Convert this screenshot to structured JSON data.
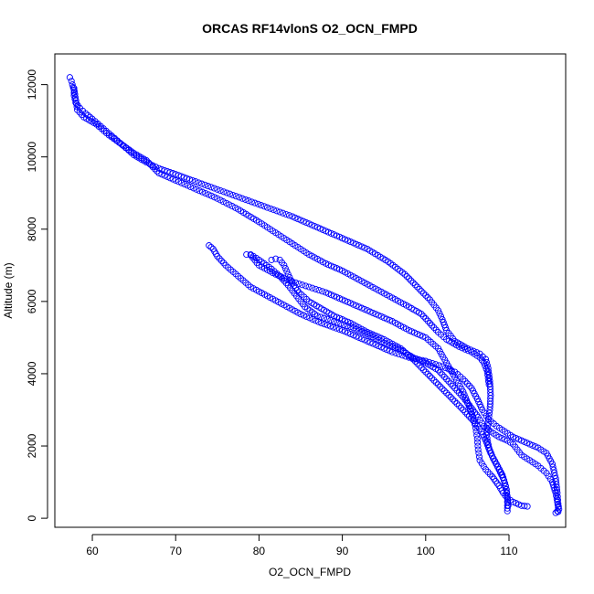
{
  "chart_data": {
    "type": "scatter",
    "title": "ORCAS RF14vlonS O2_OCN_FMPD",
    "xlabel": "O2_OCN_FMPD",
    "ylabel": "Altitude (m)",
    "xlim": [
      55.5,
      116.8
    ],
    "ylim": [
      -250,
      12850
    ],
    "xticks": [
      60,
      70,
      80,
      90,
      100,
      110
    ],
    "yticks": [
      0,
      2000,
      4000,
      6000,
      8000,
      10000,
      12000
    ],
    "marker": "open-circle",
    "color": "#0000ff",
    "grid": false,
    "series": [
      {
        "name": "",
        "segments": [
          {
            "id": "main-descent",
            "points": [
              [
                57.3,
                12200
              ],
              [
                57.5,
                12100
              ],
              [
                57.6,
                12000
              ],
              [
                57.8,
                11850
              ],
              [
                57.8,
                11700
              ],
              [
                58.0,
                11500
              ],
              [
                58.5,
                11350
              ],
              [
                59.2,
                11200
              ],
              [
                60.0,
                11050
              ],
              [
                61.0,
                10850
              ],
              [
                62.0,
                10650
              ],
              [
                63.0,
                10450
              ],
              [
                64.0,
                10250
              ],
              [
                65.0,
                10050
              ],
              [
                66.5,
                9850
              ],
              [
                68.0,
                9680
              ],
              [
                70.0,
                9520
              ],
              [
                72.0,
                9350
              ],
              [
                75.0,
                9100
              ],
              [
                78.0,
                8850
              ],
              [
                81.0,
                8600
              ],
              [
                84.0,
                8350
              ],
              [
                87.0,
                8050
              ],
              [
                90.0,
                7750
              ],
              [
                93.0,
                7450
              ],
              [
                95.5,
                7100
              ],
              [
                97.5,
                6750
              ],
              [
                99.0,
                6400
              ],
              [
                100.5,
                6050
              ],
              [
                101.5,
                5750
              ],
              [
                102.0,
                5500
              ],
              [
                102.5,
                5200
              ],
              [
                103.5,
                4900
              ],
              [
                105.0,
                4700
              ],
              [
                106.5,
                4550
              ],
              [
                107.2,
                4400
              ],
              [
                107.5,
                4150
              ],
              [
                107.7,
                3800
              ],
              [
                107.8,
                3400
              ],
              [
                107.7,
                3000
              ],
              [
                107.5,
                2650
              ],
              [
                107.3,
                2300
              ],
              [
                107.6,
                1950
              ],
              [
                108.1,
                1650
              ],
              [
                108.8,
                1350
              ],
              [
                109.4,
                1050
              ],
              [
                109.7,
                800
              ],
              [
                109.8,
                550
              ],
              [
                109.8,
                350
              ],
              [
                109.8,
                200
              ]
            ]
          },
          {
            "id": "lower-limb-a",
            "points": [
              [
                74.0,
                7550
              ],
              [
                74.5,
                7450
              ],
              [
                75.0,
                7250
              ],
              [
                76.0,
                7000
              ],
              [
                77.5,
                6700
              ],
              [
                79.0,
                6400
              ],
              [
                81.0,
                6150
              ],
              [
                83.0,
                5900
              ],
              [
                85.0,
                5650
              ],
              [
                87.5,
                5400
              ],
              [
                90.0,
                5200
              ],
              [
                92.0,
                5000
              ],
              [
                94.0,
                4800
              ],
              [
                96.0,
                4600
              ],
              [
                98.0,
                4450
              ],
              [
                100.0,
                4350
              ],
              [
                102.0,
                4200
              ],
              [
                103.5,
                4050
              ],
              [
                104.5,
                3850
              ],
              [
                105.5,
                3600
              ],
              [
                106.2,
                3300
              ],
              [
                106.8,
                3000
              ],
              [
                107.5,
                2750
              ],
              [
                108.5,
                2550
              ],
              [
                109.5,
                2400
              ],
              [
                110.5,
                2250
              ],
              [
                111.5,
                2150
              ],
              [
                112.5,
                2050
              ],
              [
                113.5,
                1950
              ],
              [
                114.5,
                1800
              ],
              [
                115.2,
                1500
              ],
              [
                115.6,
                1100
              ],
              [
                115.8,
                700
              ],
              [
                115.9,
                400
              ],
              [
                116.0,
                250
              ],
              [
                115.9,
                180
              ],
              [
                115.6,
                150
              ]
            ]
          },
          {
            "id": "lower-limb-b",
            "points": [
              [
                78.5,
                7300
              ],
              [
                79.0,
                7280
              ],
              [
                80.0,
                7000
              ],
              [
                82.0,
                6750
              ],
              [
                84.0,
                6550
              ],
              [
                86.0,
                6400
              ],
              [
                88.0,
                6250
              ],
              [
                90.0,
                6050
              ],
              [
                92.0,
                5850
              ],
              [
                94.0,
                5650
              ],
              [
                96.0,
                5450
              ],
              [
                98.0,
                5200
              ],
              [
                100.0,
                5000
              ],
              [
                101.5,
                4700
              ],
              [
                102.5,
                4300
              ],
              [
                103.5,
                3900
              ],
              [
                104.5,
                3500
              ],
              [
                105.2,
                3100
              ],
              [
                105.7,
                2800
              ],
              [
                106.0,
                2500
              ],
              [
                106.2,
                2200
              ],
              [
                106.3,
                1900
              ],
              [
                106.5,
                1600
              ],
              [
                107.2,
                1350
              ],
              [
                108.0,
                1150
              ],
              [
                108.8,
                900
              ],
              [
                109.3,
                700
              ],
              [
                109.8,
                550
              ],
              [
                110.5,
                450
              ],
              [
                111.5,
                350
              ],
              [
                112.2,
                330
              ]
            ]
          },
          {
            "id": "lower-limb-c",
            "points": [
              [
                81.5,
                7150
              ],
              [
                82.0,
                7180
              ],
              [
                82.5,
                7150
              ],
              [
                83.0,
                7000
              ],
              [
                83.5,
                6750
              ],
              [
                84.0,
                6500
              ],
              [
                84.8,
                6250
              ],
              [
                86.0,
                6000
              ],
              [
                87.5,
                5800
              ],
              [
                89.0,
                5600
              ],
              [
                91.0,
                5400
              ],
              [
                93.0,
                5150
              ],
              [
                95.0,
                4950
              ],
              [
                97.0,
                4700
              ],
              [
                98.5,
                4400
              ],
              [
                100.0,
                4050
              ],
              [
                101.5,
                3700
              ],
              [
                103.0,
                3350
              ],
              [
                104.5,
                3000
              ],
              [
                105.7,
                2700
              ],
              [
                106.7,
                2400
              ],
              [
                107.3,
                2100
              ],
              [
                107.8,
                1800
              ],
              [
                108.5,
                1500
              ],
              [
                109.2,
                1200
              ],
              [
                109.6,
                900
              ],
              [
                109.8,
                600
              ],
              [
                109.9,
                350
              ]
            ]
          },
          {
            "id": "lower-limb-d",
            "points": [
              [
                79.0,
                7300
              ],
              [
                80.0,
                7150
              ],
              [
                81.5,
                6900
              ],
              [
                82.5,
                6700
              ],
              [
                83.5,
                6450
              ],
              [
                84.5,
                6150
              ],
              [
                85.5,
                5850
              ],
              [
                87.0,
                5600
              ],
              [
                89.0,
                5450
              ],
              [
                91.0,
                5300
              ],
              [
                93.0,
                5100
              ],
              [
                95.0,
                4850
              ],
              [
                97.0,
                4650
              ],
              [
                98.5,
                4450
              ],
              [
                100.0,
                4300
              ],
              [
                101.5,
                4100
              ],
              [
                102.5,
                3850
              ],
              [
                103.5,
                3600
              ],
              [
                104.5,
                3350
              ],
              [
                105.5,
                3050
              ],
              [
                106.3,
                2800
              ],
              [
                107.0,
                2550
              ],
              [
                107.8,
                2400
              ],
              [
                108.8,
                2250
              ],
              [
                109.8,
                2150
              ],
              [
                110.5,
                2050
              ],
              [
                111.0,
                1900
              ],
              [
                111.5,
                1750
              ],
              [
                112.5,
                1600
              ],
              [
                113.5,
                1450
              ],
              [
                114.5,
                1250
              ],
              [
                115.2,
                1000
              ],
              [
                115.6,
                700
              ],
              [
                115.8,
                450
              ],
              [
                115.9,
                300
              ],
              [
                115.8,
                200
              ]
            ]
          },
          {
            "id": "upper-return",
            "points": [
              [
                57.8,
                11900
              ],
              [
                58.2,
                11300
              ],
              [
                59.0,
                11100
              ],
              [
                60.5,
                10900
              ],
              [
                62.0,
                10600
              ],
              [
                63.5,
                10350
              ],
              [
                65.0,
                10100
              ],
              [
                66.5,
                9900
              ],
              [
                68.0,
                9550
              ],
              [
                70.0,
                9350
              ],
              [
                72.5,
                9100
              ],
              [
                75.0,
                8850
              ],
              [
                77.5,
                8550
              ],
              [
                80.0,
                8200
              ],
              [
                82.0,
                7900
              ],
              [
                84.0,
                7600
              ],
              [
                86.0,
                7300
              ],
              [
                88.0,
                7050
              ],
              [
                90.0,
                6850
              ],
              [
                92.0,
                6600
              ],
              [
                94.0,
                6350
              ],
              [
                96.0,
                6100
              ],
              [
                98.0,
                5850
              ],
              [
                99.5,
                5650
              ],
              [
                100.5,
                5400
              ],
              [
                101.5,
                5150
              ],
              [
                102.5,
                4950
              ],
              [
                104.0,
                4750
              ],
              [
                105.5,
                4600
              ],
              [
                106.5,
                4450
              ],
              [
                107.0,
                4300
              ],
              [
                107.4,
                4050
              ],
              [
                107.6,
                3700
              ]
            ]
          }
        ]
      }
    ]
  }
}
